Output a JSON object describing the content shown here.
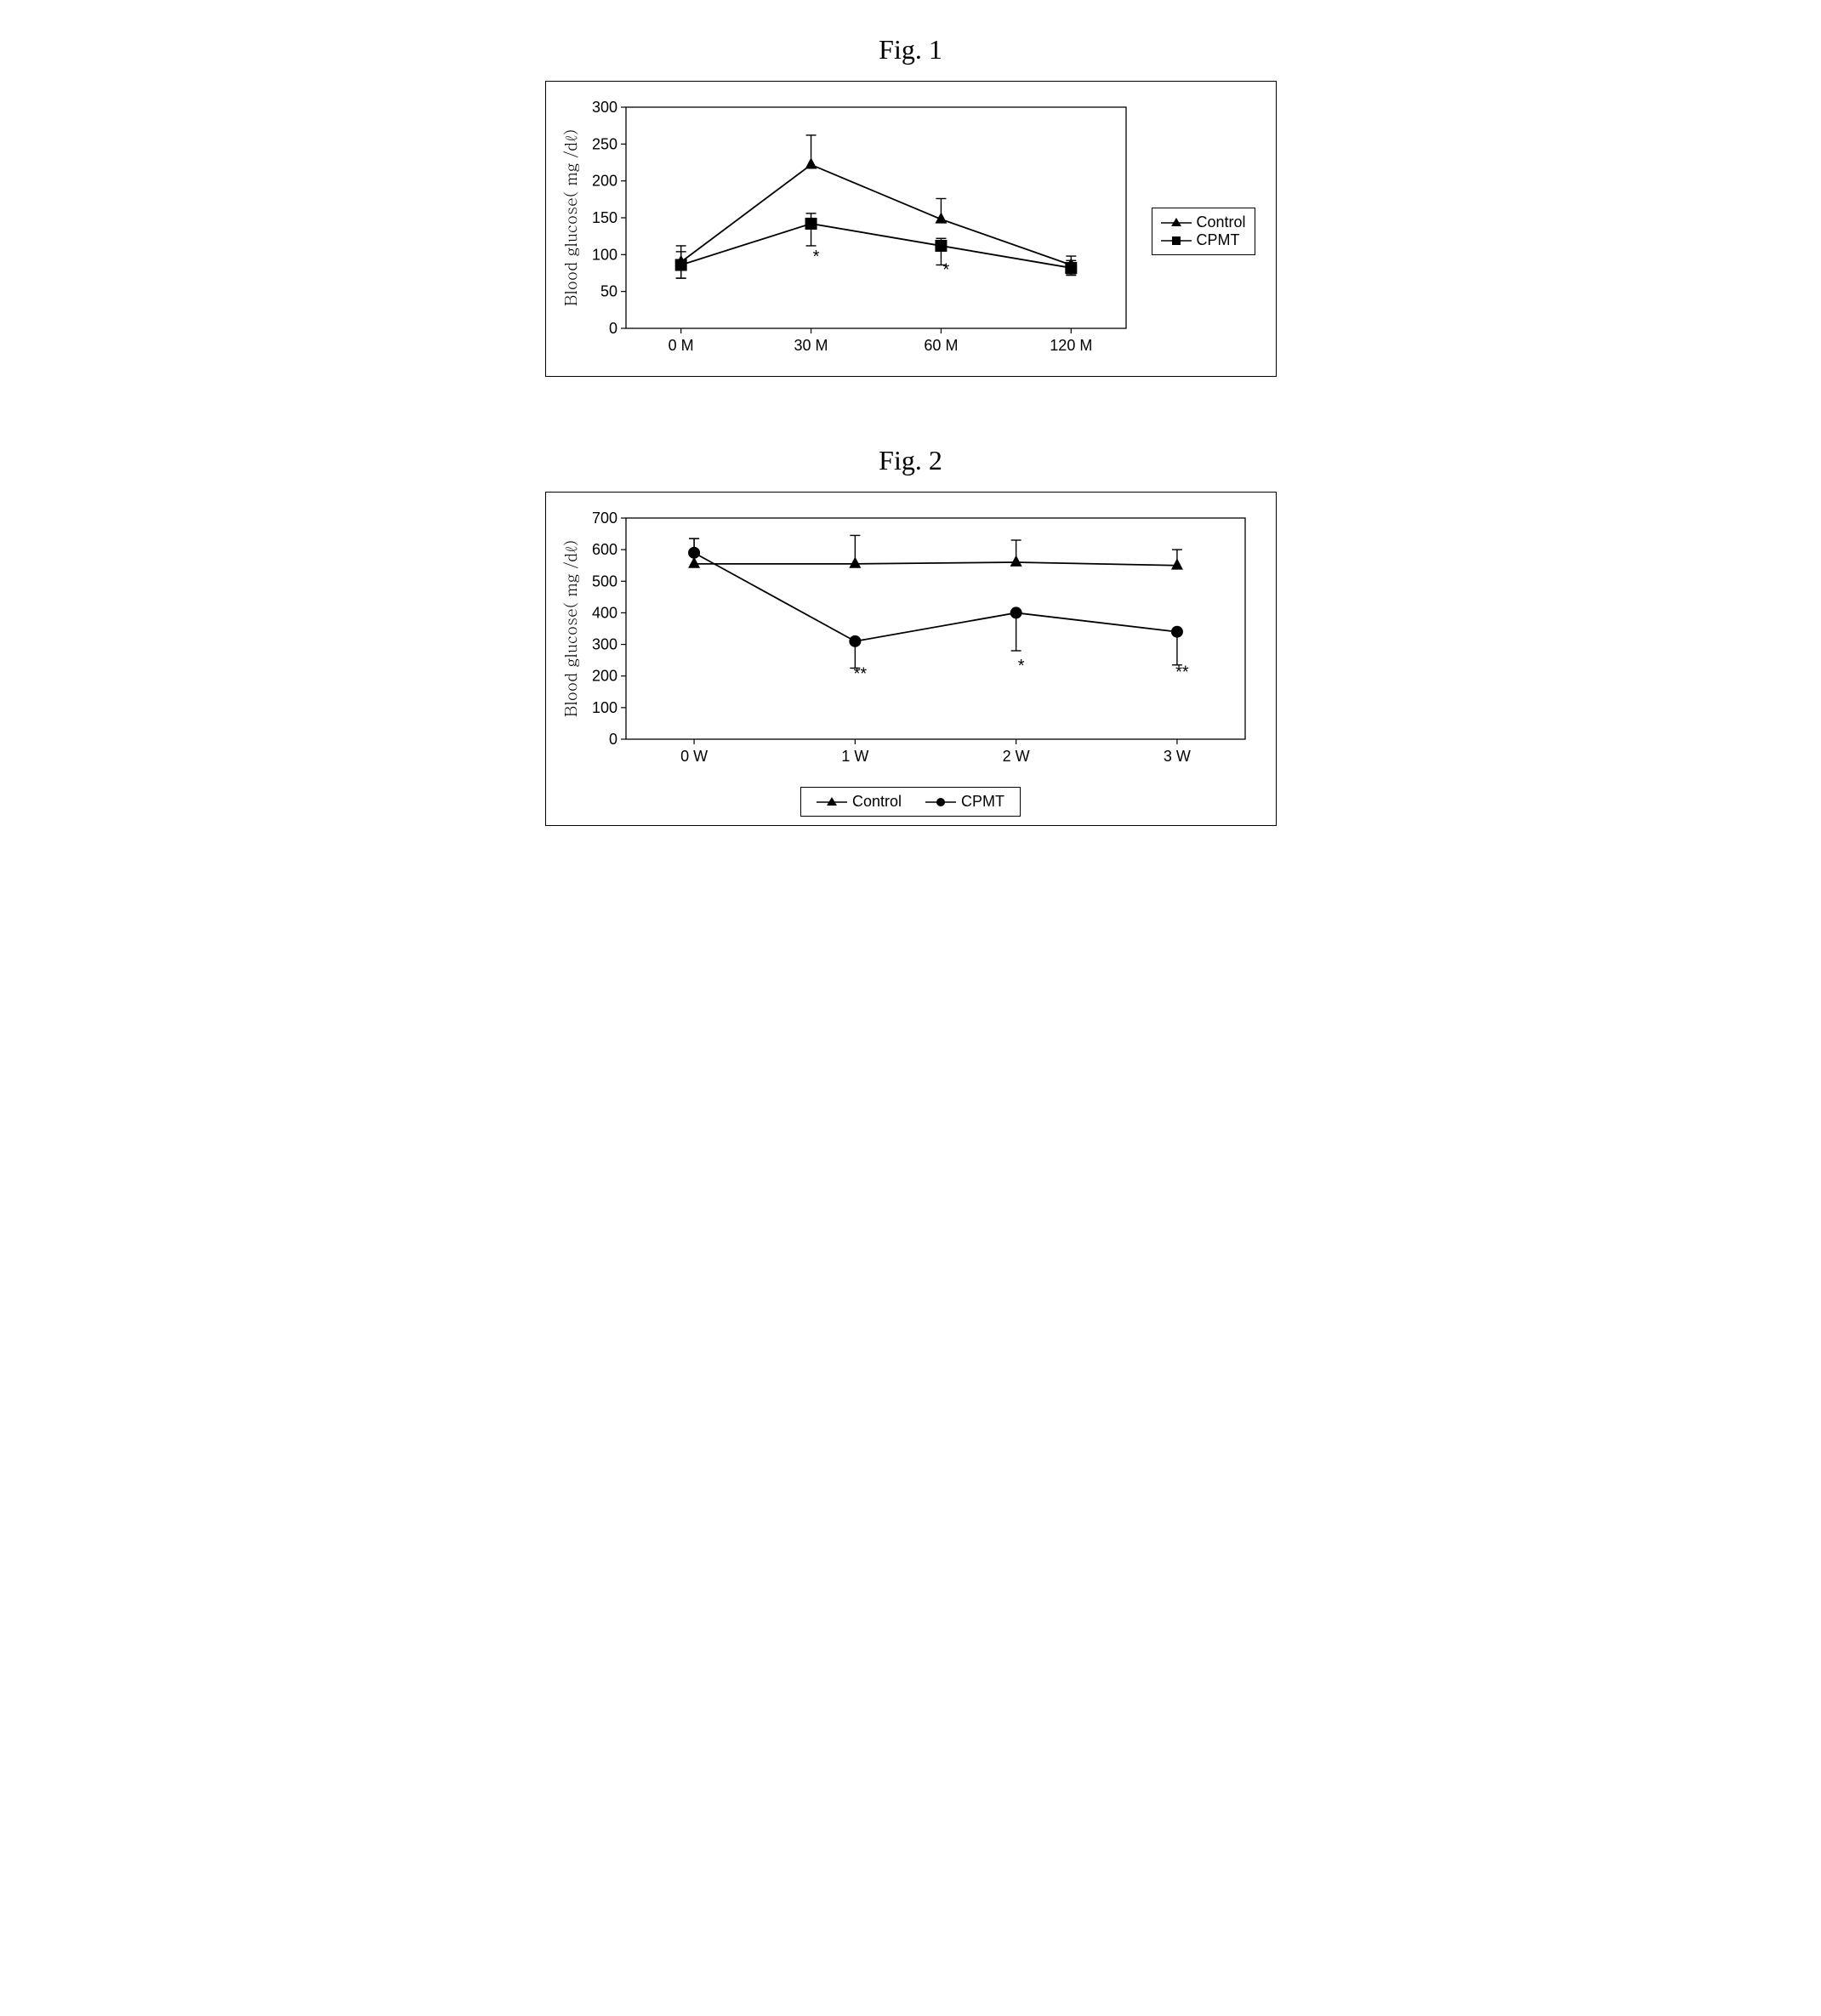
{
  "fig1": {
    "title": "Fig. 1",
    "type": "line",
    "ylabel": "Blood glucose( mg /dℓ)",
    "xlabel_categories": [
      "0 M",
      "30 M",
      "60 M",
      "120 M"
    ],
    "ylim": [
      0,
      300
    ],
    "ytick_step": 50,
    "label_fontsize": 19,
    "tick_fontsize": 18,
    "line_width": 1.8,
    "marker_size": 7,
    "background_color": "#ffffff",
    "axis_color": "#000000",
    "tick_color": "#000000",
    "series": [
      {
        "name": "Control",
        "marker": "triangle",
        "color": "#000000",
        "values": [
          90,
          222,
          148,
          86
        ],
        "err_up": [
          22,
          40,
          28,
          12
        ],
        "err_down": [
          22,
          0,
          0,
          12
        ]
      },
      {
        "name": "CPMT",
        "marker": "square",
        "color": "#000000",
        "values": [
          86,
          142,
          112,
          82
        ],
        "err_up": [
          18,
          14,
          10,
          10
        ],
        "err_down": [
          18,
          30,
          26,
          10
        ]
      }
    ],
    "significance": [
      {
        "x_index": 1,
        "label": "*",
        "y": 90
      },
      {
        "x_index": 2,
        "label": "*",
        "y": 72
      }
    ],
    "legend_position": "right"
  },
  "fig2": {
    "title": "Fig. 2",
    "type": "line",
    "ylabel": "Blood glucose( mg /dℓ)",
    "xlabel_categories": [
      "0 W",
      "1 W",
      "2 W",
      "3 W"
    ],
    "ylim": [
      0,
      700
    ],
    "ytick_step": 100,
    "label_fontsize": 19,
    "tick_fontsize": 18,
    "line_width": 1.8,
    "marker_size": 7,
    "background_color": "#ffffff",
    "axis_color": "#000000",
    "tick_color": "#000000",
    "series": [
      {
        "name": "Control",
        "marker": "triangle",
        "color": "#000000",
        "values": [
          555,
          555,
          560,
          550
        ],
        "err_up": [
          80,
          90,
          70,
          50
        ],
        "err_down": [
          0,
          0,
          0,
          0
        ]
      },
      {
        "name": "CPMT",
        "marker": "circle",
        "color": "#000000",
        "values": [
          590,
          310,
          400,
          340
        ],
        "err_up": [
          45,
          0,
          0,
          0
        ],
        "err_down": [
          0,
          85,
          120,
          105
        ]
      }
    ],
    "significance": [
      {
        "x_index": 1,
        "label": "**",
        "y": 190
      },
      {
        "x_index": 2,
        "label": "*",
        "y": 215
      },
      {
        "x_index": 3,
        "label": "**",
        "y": 195
      }
    ],
    "legend_position": "bottom"
  }
}
